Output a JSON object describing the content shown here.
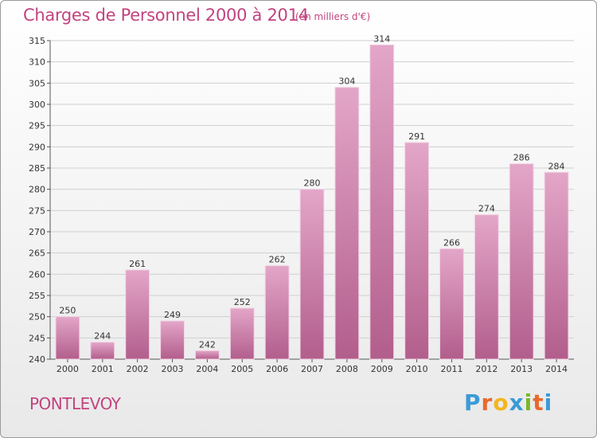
{
  "header": {
    "title": "Charges de Personnel 2000 à 2014",
    "subtitle": "(en milliers d'€)"
  },
  "footer": {
    "town": "PONTLEVOY",
    "logo": {
      "letters": [
        "P",
        "r",
        "o",
        "x",
        "i",
        "t",
        "i"
      ],
      "colors": [
        "#3a9ad9",
        "#e8692c",
        "#f3b61f",
        "#3a9ad9",
        "#79b829",
        "#e8692c",
        "#3a9ad9"
      ]
    }
  },
  "colors": {
    "text_accent": "#c2437f",
    "bar_light": "#e3a6c8",
    "bar_dark": "#b25e8c"
  },
  "chart_data": {
    "type": "bar",
    "title": "Charges de Personnel 2000 à 2014",
    "subtitle": "(en milliers d'€)",
    "xlabel": "",
    "ylabel": "",
    "categories": [
      "2000",
      "2001",
      "2002",
      "2003",
      "2004",
      "2005",
      "2006",
      "2007",
      "2008",
      "2009",
      "2010",
      "2011",
      "2012",
      "2013",
      "2014"
    ],
    "values": [
      250,
      244,
      261,
      249,
      242,
      252,
      262,
      280,
      304,
      314,
      291,
      266,
      274,
      286,
      284
    ],
    "ylim": [
      240,
      315
    ],
    "yticks": [
      240,
      245,
      250,
      255,
      260,
      265,
      270,
      275,
      280,
      285,
      290,
      295,
      300,
      305,
      310,
      315
    ],
    "grid": true
  }
}
